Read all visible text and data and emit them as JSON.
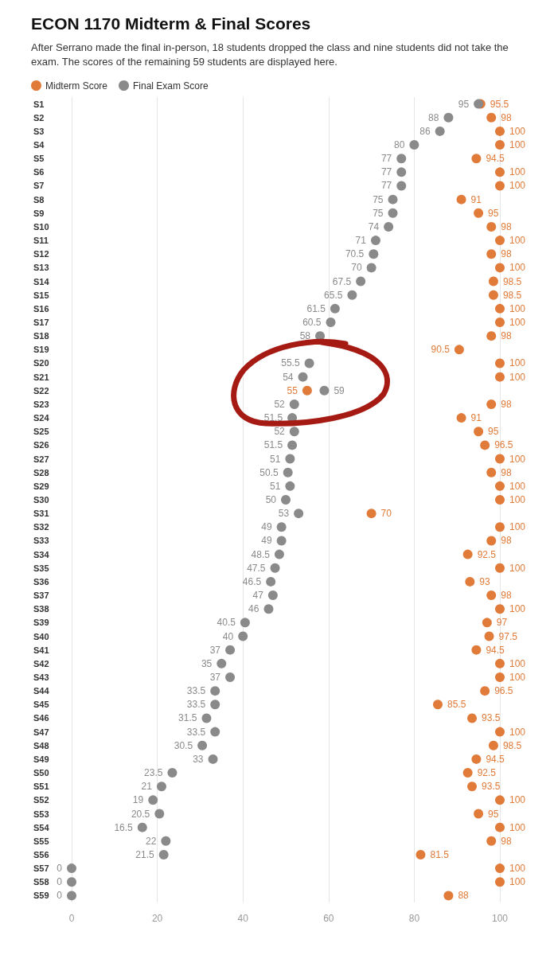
{
  "chart_data": {
    "type": "scatter",
    "orientation": "horizontal",
    "title": "ECON 1170 Midterm & Final Scores",
    "subtitle": "After Serrano made the final in-person, 18 students dropped the class and nine students did not take the exam. The scores of the remaining 59 students are displayed here.",
    "categories": [
      "S1",
      "S2",
      "S3",
      "S4",
      "S5",
      "S6",
      "S7",
      "S8",
      "S9",
      "S10",
      "S11",
      "S12",
      "S13",
      "S14",
      "S15",
      "S16",
      "S17",
      "S18",
      "S19",
      "S20",
      "S21",
      "S22",
      "S23",
      "S24",
      "S25",
      "S26",
      "S27",
      "S28",
      "S29",
      "S30",
      "S31",
      "S32",
      "S33",
      "S34",
      "S35",
      "S36",
      "S37",
      "S38",
      "S39",
      "S40",
      "S41",
      "S42",
      "S43",
      "S44",
      "S45",
      "S46",
      "S47",
      "S48",
      "S49",
      "S50",
      "S51",
      "S52",
      "S53",
      "S54",
      "S55",
      "S56",
      "S57",
      "S58",
      "S59"
    ],
    "series": [
      {
        "name": "Midterm Score",
        "color": "#e07b39",
        "values": [
          95.5,
          98,
          100,
          100,
          94.5,
          100,
          100,
          91,
          95,
          98,
          100,
          98,
          100,
          98.5,
          98.5,
          100,
          100,
          98,
          90.5,
          100,
          100,
          55,
          98,
          91,
          95,
          96.5,
          100,
          98,
          100,
          100,
          70,
          100,
          98,
          92.5,
          100,
          93,
          98,
          100,
          97,
          97.5,
          94.5,
          100,
          100,
          96.5,
          85.5,
          93.5,
          100,
          98.5,
          94.5,
          92.5,
          93.5,
          100,
          95,
          100,
          98,
          81.5,
          100,
          100,
          88
        ]
      },
      {
        "name": "Final Exam Score",
        "color": "#8a8a8a",
        "values": [
          95,
          88,
          86,
          80,
          77,
          77,
          77,
          75,
          75,
          74,
          71,
          70.5,
          70,
          67.5,
          65.5,
          61.5,
          60.5,
          58,
          null,
          55.5,
          54,
          59,
          52,
          51.5,
          52,
          51.5,
          51,
          50.5,
          51,
          50,
          53,
          49,
          49,
          48.5,
          47.5,
          46.5,
          47,
          46,
          40.5,
          40,
          37,
          35,
          37,
          33.5,
          33.5,
          31.5,
          33.5,
          30.5,
          33,
          23.5,
          21,
          19,
          20.5,
          16.5,
          22,
          21.5,
          0,
          0,
          0
        ]
      }
    ],
    "xlim": [
      0,
      100
    ],
    "xticks": [
      0,
      20,
      40,
      60,
      80,
      100
    ],
    "grid": "x",
    "legend": "top left",
    "marker": "circle",
    "data_labels": true
  }
}
